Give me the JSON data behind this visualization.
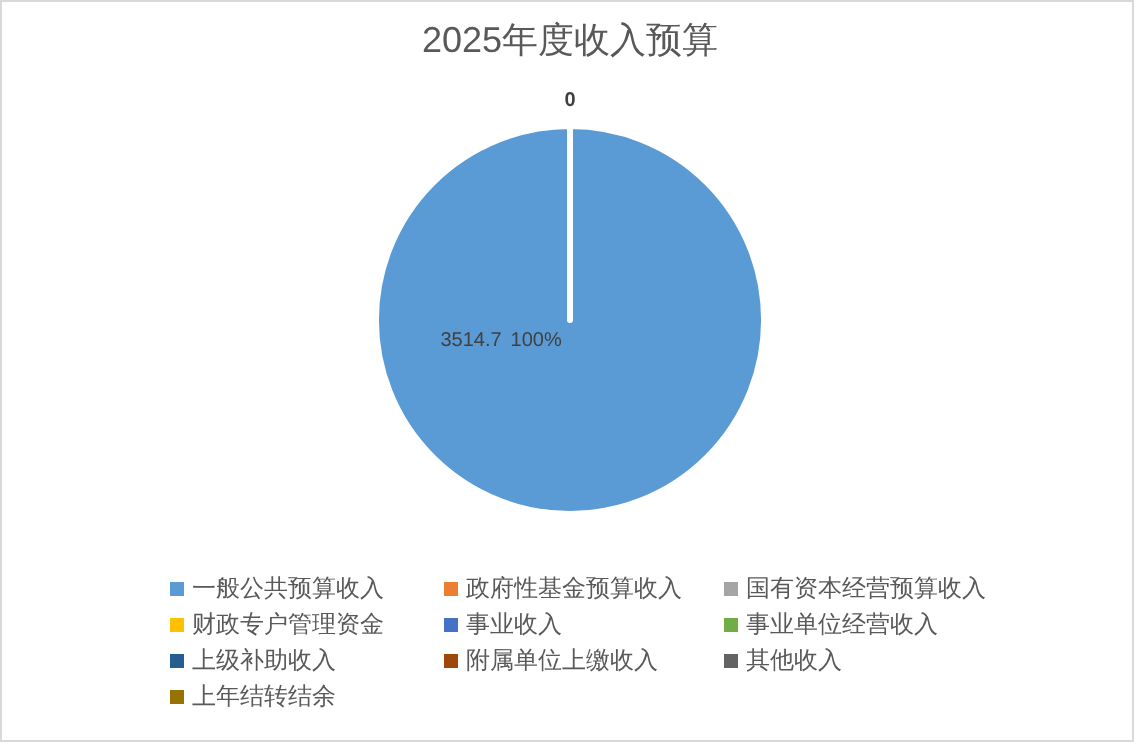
{
  "chart_data": {
    "type": "pie",
    "title": "2025年度收入预算",
    "categories": [
      "一般公共预算收入",
      "政府性基金预算收入",
      "国有资本经营预算收入",
      "财政专户管理资金",
      "事业收入",
      "事业单位经营收入",
      "上级补助收入",
      "附属单位上缴收入",
      "其他收入",
      "上年结转结余"
    ],
    "values": [
      3514.7,
      0,
      0,
      0,
      0,
      0,
      0,
      0,
      0,
      0
    ],
    "colors": [
      "#5b9bd5",
      "#ed7d31",
      "#a5a5a5",
      "#ffc000",
      "#4472c4",
      "#70ad47",
      "#255e91",
      "#9e480e",
      "#636363",
      "#997300"
    ],
    "annotations": [
      "100%"
    ],
    "value_labels": [
      "3514.7",
      "0",
      null,
      null,
      null,
      null,
      null,
      null,
      null,
      null
    ],
    "legend": "bottom"
  }
}
